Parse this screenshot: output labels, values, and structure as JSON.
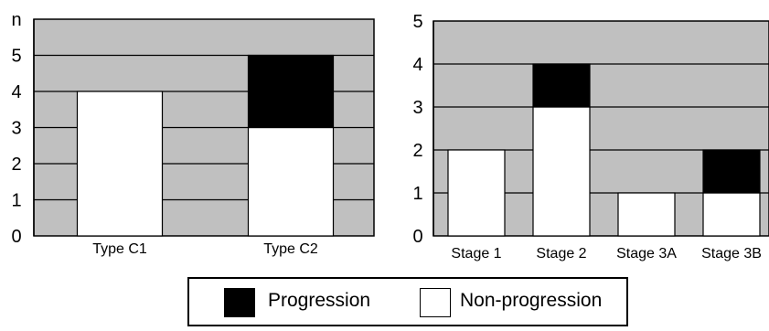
{
  "chart_data": [
    {
      "type": "bar",
      "stacked": true,
      "ylabel": "n",
      "ylim": [
        0,
        6
      ],
      "yticks": [
        0,
        1,
        2,
        3,
        4,
        5
      ],
      "categories": [
        "Type C1",
        "Type C2"
      ],
      "series": [
        {
          "name": "Non-progression",
          "values": [
            4,
            3
          ],
          "color": "#ffffff"
        },
        {
          "name": "Progression",
          "values": [
            0,
            2
          ],
          "color": "#000000"
        }
      ],
      "background_color": "#c0c0c0",
      "grid": true
    },
    {
      "type": "bar",
      "stacked": true,
      "ylim": [
        0,
        5
      ],
      "yticks": [
        0,
        1,
        2,
        3,
        4,
        5
      ],
      "categories": [
        "Stage 1",
        "Stage 2",
        "Stage 3A",
        "Stage 3B"
      ],
      "series": [
        {
          "name": "Non-progression",
          "values": [
            2,
            3,
            1,
            1
          ],
          "color": "#ffffff"
        },
        {
          "name": "Progression",
          "values": [
            0,
            1,
            0,
            1
          ],
          "color": "#000000"
        }
      ],
      "background_color": "#c0c0c0",
      "grid": true
    }
  ],
  "legend": {
    "items": [
      {
        "label": "Progression",
        "color": "#000000"
      },
      {
        "label": "Non-progression",
        "color": "#ffffff"
      }
    ]
  }
}
